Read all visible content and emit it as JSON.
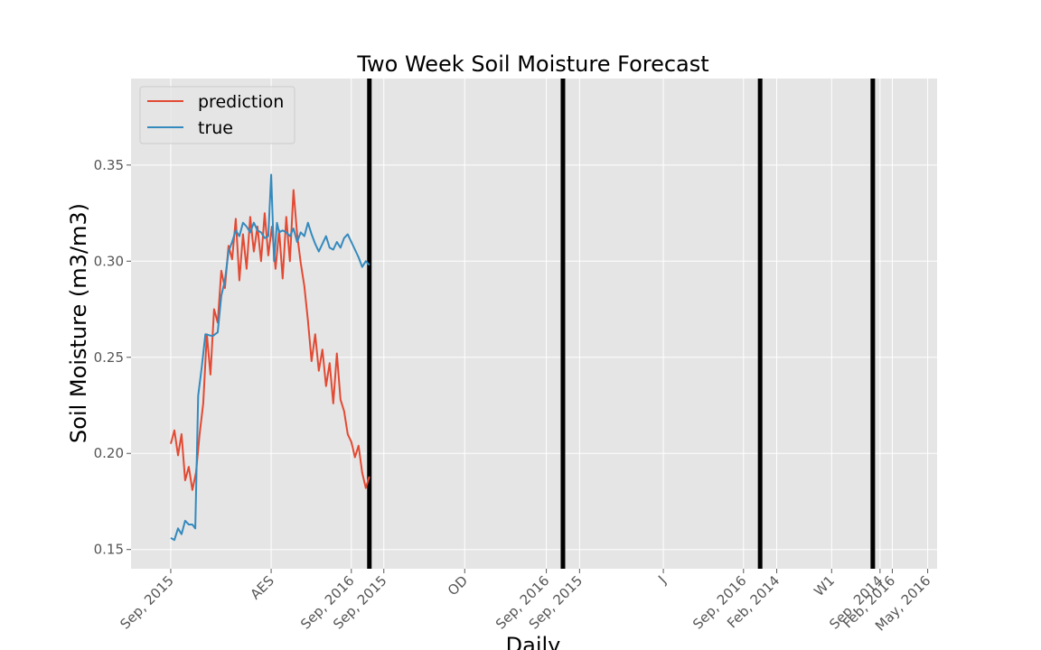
{
  "chart_data": {
    "type": "line",
    "title": "Two Week Soil Moisture Forecast",
    "xlabel": "Daily",
    "ylabel": "Soil Moisture (m3/m3)",
    "ylim": [
      0.14,
      0.395
    ],
    "xlim": [
      -5,
      1111
    ],
    "grid": true,
    "legend_position": "top-left",
    "y_ticks": [
      {
        "value": 0.15,
        "label": "0.15"
      },
      {
        "value": 0.2,
        "label": "0.20"
      },
      {
        "value": 0.25,
        "label": "0.25"
      },
      {
        "value": 0.3,
        "label": "0.30"
      },
      {
        "value": 0.35,
        "label": "0.35"
      }
    ],
    "x_ticks": [
      {
        "value": 50,
        "label": "Sep, 2015"
      },
      {
        "value": 189,
        "label": "AES"
      },
      {
        "value": 300,
        "label": "Sep, 2016"
      },
      {
        "value": 345,
        "label": "Sep, 2015"
      },
      {
        "value": 457,
        "label": "OD"
      },
      {
        "value": 570,
        "label": "Sep, 2016"
      },
      {
        "value": 616,
        "label": "Sep, 2015"
      },
      {
        "value": 732,
        "label": "J"
      },
      {
        "value": 843,
        "label": "Sep, 2016"
      },
      {
        "value": 889,
        "label": "Feb, 2014"
      },
      {
        "value": 965,
        "label": "W1"
      },
      {
        "value": 1032,
        "label": "Sep, 2014"
      },
      {
        "value": 1049,
        "label": "Feb, 2016"
      },
      {
        "value": 1098,
        "label": "May, 2016"
      }
    ],
    "separators": [
      325,
      593,
      866,
      1022
    ],
    "series": [
      {
        "name": "prediction",
        "color": "#e24a33",
        "points": [
          [
            50,
            0.205
          ],
          [
            55,
            0.212
          ],
          [
            60,
            0.199
          ],
          [
            65,
            0.21
          ],
          [
            70,
            0.186
          ],
          [
            75,
            0.193
          ],
          [
            80,
            0.181
          ],
          [
            85,
            0.19
          ],
          [
            90,
            0.21
          ],
          [
            95,
            0.226
          ],
          [
            100,
            0.262
          ],
          [
            105,
            0.241
          ],
          [
            110,
            0.275
          ],
          [
            115,
            0.268
          ],
          [
            120,
            0.295
          ],
          [
            125,
            0.286
          ],
          [
            130,
            0.308
          ],
          [
            135,
            0.301
          ],
          [
            140,
            0.322
          ],
          [
            145,
            0.29
          ],
          [
            150,
            0.314
          ],
          [
            155,
            0.296
          ],
          [
            160,
            0.323
          ],
          [
            165,
            0.305
          ],
          [
            170,
            0.318
          ],
          [
            175,
            0.3
          ],
          [
            180,
            0.325
          ],
          [
            185,
            0.303
          ],
          [
            190,
            0.318
          ],
          [
            195,
            0.296
          ],
          [
            200,
            0.316
          ],
          [
            205,
            0.291
          ],
          [
            210,
            0.323
          ],
          [
            215,
            0.3
          ],
          [
            220,
            0.337
          ],
          [
            225,
            0.314
          ],
          [
            230,
            0.299
          ],
          [
            235,
            0.287
          ],
          [
            240,
            0.269
          ],
          [
            245,
            0.248
          ],
          [
            250,
            0.262
          ],
          [
            255,
            0.243
          ],
          [
            260,
            0.254
          ],
          [
            265,
            0.235
          ],
          [
            270,
            0.247
          ],
          [
            275,
            0.226
          ],
          [
            280,
            0.252
          ],
          [
            285,
            0.228
          ],
          [
            290,
            0.222
          ],
          [
            295,
            0.21
          ],
          [
            300,
            0.206
          ],
          [
            305,
            0.198
          ],
          [
            310,
            0.204
          ],
          [
            315,
            0.19
          ],
          [
            320,
            0.182
          ],
          [
            325,
            0.188
          ]
        ]
      },
      {
        "name": "true",
        "color": "#348abd",
        "points": [
          [
            50,
            0.156
          ],
          [
            55,
            0.155
          ],
          [
            60,
            0.161
          ],
          [
            65,
            0.158
          ],
          [
            70,
            0.165
          ],
          [
            75,
            0.163
          ],
          [
            80,
            0.163
          ],
          [
            84,
            0.161
          ],
          [
            88,
            0.23
          ],
          [
            93,
            0.245
          ],
          [
            98,
            0.262
          ],
          [
            108,
            0.261
          ],
          [
            115,
            0.263
          ],
          [
            120,
            0.282
          ],
          [
            125,
            0.29
          ],
          [
            130,
            0.305
          ],
          [
            135,
            0.31
          ],
          [
            140,
            0.316
          ],
          [
            145,
            0.313
          ],
          [
            150,
            0.32
          ],
          [
            155,
            0.318
          ],
          [
            160,
            0.315
          ],
          [
            165,
            0.32
          ],
          [
            170,
            0.316
          ],
          [
            175,
            0.315
          ],
          [
            180,
            0.312
          ],
          [
            185,
            0.313
          ],
          [
            189,
            0.345
          ],
          [
            193,
            0.3
          ],
          [
            197,
            0.32
          ],
          [
            200,
            0.315
          ],
          [
            205,
            0.316
          ],
          [
            210,
            0.315
          ],
          [
            215,
            0.313
          ],
          [
            220,
            0.317
          ],
          [
            225,
            0.31
          ],
          [
            230,
            0.315
          ],
          [
            235,
            0.313
          ],
          [
            240,
            0.32
          ],
          [
            245,
            0.314
          ],
          [
            250,
            0.309
          ],
          [
            255,
            0.305
          ],
          [
            260,
            0.309
          ],
          [
            265,
            0.313
          ],
          [
            270,
            0.307
          ],
          [
            275,
            0.306
          ],
          [
            280,
            0.31
          ],
          [
            285,
            0.307
          ],
          [
            290,
            0.312
          ],
          [
            295,
            0.314
          ],
          [
            300,
            0.31
          ],
          [
            305,
            0.306
          ],
          [
            310,
            0.302
          ],
          [
            315,
            0.297
          ],
          [
            320,
            0.3
          ],
          [
            325,
            0.298
          ]
        ]
      }
    ]
  }
}
